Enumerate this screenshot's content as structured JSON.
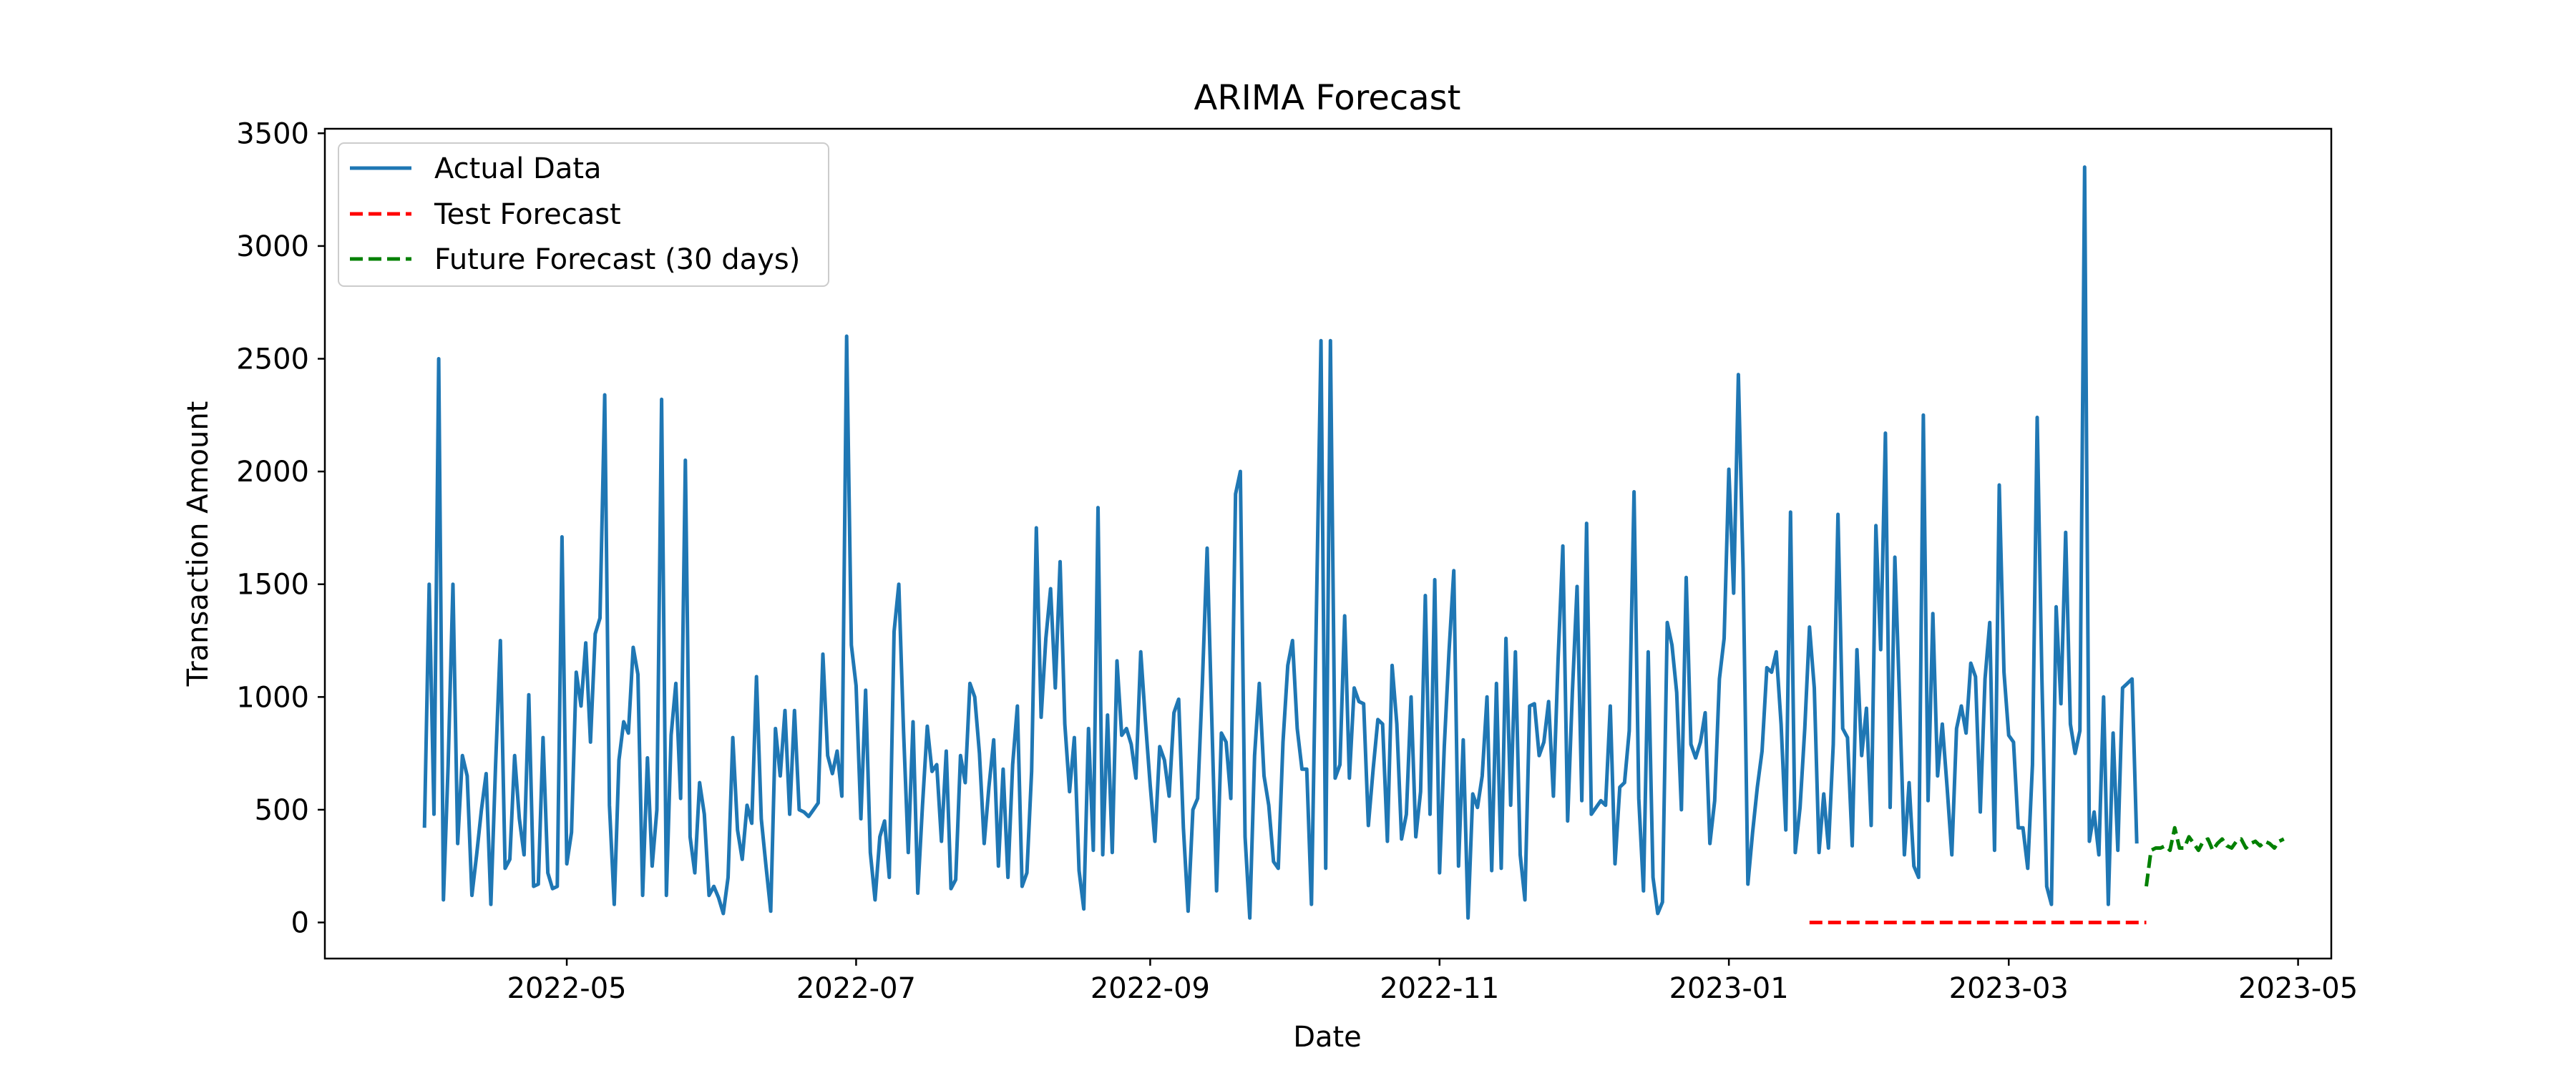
{
  "chart_data": {
    "type": "line",
    "title": "ARIMA Forecast",
    "xlabel": "Date",
    "ylabel": "Transaction Amount",
    "xlim": [
      "2022-03-11",
      "2023-05-08"
    ],
    "ylim": [
      -160,
      3520
    ],
    "x_ticks": [
      "2022-05",
      "2022-07",
      "2022-09",
      "2022-11",
      "2023-01",
      "2023-03",
      "2023-05"
    ],
    "y_ticks": [
      0,
      500,
      1000,
      1500,
      2000,
      2500,
      3000,
      3500
    ],
    "grid": false,
    "legend_position": "upper-left",
    "series": [
      {
        "name": "Actual Data",
        "color": "#1f77b4",
        "style": "solid",
        "start_date": "2022-04-01",
        "values": [
          420,
          1500,
          480,
          2500,
          100,
          700,
          1500,
          350,
          740,
          650,
          120,
          300,
          500,
          660,
          80,
          700,
          1250,
          240,
          280,
          740,
          460,
          300,
          1010,
          160,
          170,
          820,
          220,
          150,
          160,
          1710,
          260,
          400,
          1110,
          960,
          1240,
          800,
          1280,
          1350,
          2340,
          520,
          80,
          720,
          890,
          840,
          1220,
          1100,
          120,
          730,
          250,
          500,
          2320,
          120,
          830,
          1060,
          550,
          2050,
          380,
          220,
          620,
          480,
          120,
          160,
          110,
          40,
          200,
          820,
          410,
          280,
          520,
          440,
          1090,
          460,
          250,
          50,
          860,
          650,
          940,
          480,
          940,
          500,
          490,
          470,
          500,
          530,
          1190,
          740,
          660,
          760,
          560,
          2600,
          1230,
          1050,
          460,
          1030,
          310,
          100,
          380,
          450,
          200,
          1290,
          1500,
          850,
          310,
          890,
          130,
          520,
          870,
          670,
          700,
          360,
          760,
          150,
          190,
          740,
          620,
          1060,
          1000,
          750,
          350,
          600,
          810,
          250,
          680,
          200,
          700,
          960,
          160,
          220,
          670,
          1750,
          910,
          1260,
          1480,
          1040,
          1600,
          880,
          580,
          820,
          230,
          60,
          860,
          320,
          1840,
          300,
          920,
          310,
          1160,
          830,
          860,
          790,
          640,
          1200,
          890,
          610,
          360,
          780,
          720,
          560,
          930,
          990,
          420,
          50,
          500,
          550,
          1060,
          1660,
          890,
          140,
          840,
          800,
          550,
          1900,
          2000,
          380,
          20,
          740,
          1060,
          650,
          520,
          270,
          240,
          800,
          1140,
          1250,
          860,
          680,
          680,
          80,
          1320,
          2580,
          240,
          2580,
          640,
          700,
          1360,
          640,
          1040,
          980,
          970,
          430,
          680,
          900,
          880,
          360,
          1140,
          880,
          370,
          480,
          1000,
          380,
          580,
          1450,
          480,
          1520,
          220,
          780,
          1200,
          1560,
          250,
          810,
          20,
          570,
          510,
          650,
          1000,
          230,
          1060,
          240,
          1260,
          520,
          1200,
          300,
          100,
          960,
          970,
          740,
          800,
          980,
          560,
          1170,
          1670,
          450,
          1020,
          1490,
          540,
          1770,
          480,
          510,
          540,
          520,
          960,
          260,
          600,
          620,
          850,
          1910,
          550,
          140,
          1200,
          200,
          40,
          90,
          1330,
          1230,
          1020,
          500,
          1530,
          790,
          730,
          800,
          930,
          350,
          540,
          1080,
          1260,
          2010,
          1460,
          2430,
          1570,
          170,
          400,
          600,
          760,
          1130,
          1110,
          1200,
          880,
          410,
          1820,
          310,
          510,
          860,
          1310,
          1040,
          310,
          570,
          330,
          790,
          1810,
          860,
          820,
          340,
          1210,
          740,
          950,
          430,
          1760,
          1210,
          2170,
          510,
          1620,
          980,
          300,
          620,
          250,
          200,
          2250,
          540,
          1370,
          650,
          880,
          600,
          300,
          860,
          960,
          840,
          1150,
          1090,
          490,
          1080,
          1330,
          320,
          1940,
          1110,
          830,
          800,
          420,
          420,
          240,
          700,
          2240,
          1080,
          160,
          80,
          1400,
          970,
          1730,
          880,
          750,
          850,
          3350,
          360,
          490,
          300,
          1000,
          80,
          840,
          320,
          1040,
          1060,
          1080,
          350
        ]
      },
      {
        "name": "Test Forecast",
        "color": "#ff0000",
        "style": "dashed",
        "start_date": "2023-01-18",
        "values": [
          0,
          0,
          0,
          0,
          0,
          0,
          0,
          0,
          0,
          0,
          0,
          0,
          0,
          0,
          0,
          0,
          0,
          0,
          0,
          0,
          0,
          0,
          0,
          0,
          0,
          0,
          0,
          0,
          0,
          0,
          0,
          0,
          0,
          0,
          0,
          0,
          0,
          0,
          0,
          0,
          0,
          0,
          0,
          0,
          0,
          0,
          0,
          0,
          0,
          0,
          0,
          0,
          0,
          0,
          0,
          0,
          0,
          0,
          0,
          0,
          0,
          0,
          0,
          0,
          0,
          0,
          0,
          0,
          0,
          0,
          0,
          0
        ]
      },
      {
        "name": "Future Forecast (30 days)",
        "color": "#008000",
        "style": "dashed",
        "start_date": "2023-03-30",
        "values": [
          160,
          320,
          330,
          330,
          340,
          320,
          420,
          330,
          330,
          380,
          350,
          320,
          360,
          370,
          320,
          350,
          370,
          340,
          330,
          360,
          370,
          330,
          350,
          360,
          340,
          360,
          350,
          330,
          360,
          370
        ]
      }
    ]
  }
}
